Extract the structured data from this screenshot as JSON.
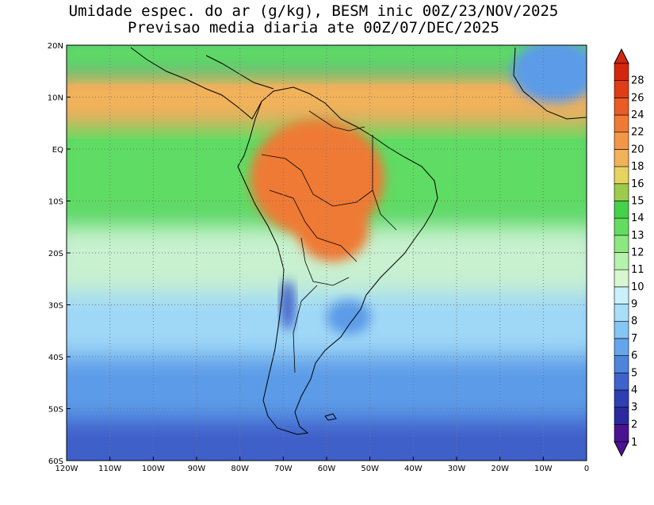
{
  "title": {
    "line1": "Umidade espec. do ar (g/kg), BESM inic 00Z/23/NOV/2025",
    "line2": "Previsao media diaria ate 00Z/07/DEC/2025"
  },
  "axes": {
    "x_labels": [
      "120W",
      "110W",
      "100W",
      "90W",
      "80W",
      "70W",
      "60W",
      "50W",
      "40W",
      "30W",
      "20W",
      "10W",
      "0"
    ],
    "y_labels": [
      "20N",
      "10N",
      "EQ",
      "10S",
      "20S",
      "30S",
      "40S",
      "50S",
      "60S"
    ]
  },
  "colorbar": {
    "labels": [
      "1",
      "2",
      "3",
      "4",
      "5",
      "6",
      "7",
      "8",
      "9",
      "10",
      "11",
      "12",
      "13",
      "14",
      "15",
      "16",
      "18",
      "20",
      "22",
      "24",
      "26",
      "28"
    ],
    "colors": [
      "#4b1391",
      "#2a2a9e",
      "#2e3fb3",
      "#3f63cc",
      "#4f84dd",
      "#64a6ec",
      "#86c6f4",
      "#a9def9",
      "#c9f0fb",
      "#d7f7d0",
      "#b6f1ad",
      "#8ee882",
      "#62dd5f",
      "#45d14a",
      "#9ccc4a",
      "#e6d45e",
      "#f2b25a",
      "#f49648",
      "#ef7a35",
      "#ea5b25",
      "#e03c16",
      "#d4260e"
    ]
  },
  "map_colors": {
    "ocean_south_deep": "#3f5fc9",
    "ocean_south": "#5b9be8",
    "ocean_mid": "#9fd8f7",
    "ocean_subtropic": "#c8f1d0",
    "ocean_tropic": "#5fdc63",
    "itcz": "#f2b25a",
    "amazon": "#ef7a35",
    "andes": "#3f5fc9",
    "coast": "#000000",
    "grid": "#777777"
  }
}
